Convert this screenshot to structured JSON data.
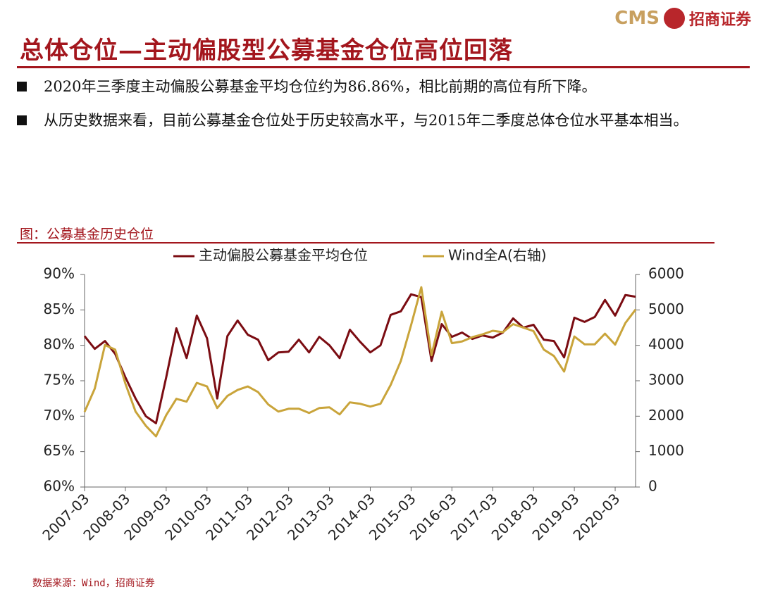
{
  "header": {
    "logo_text": "CMS",
    "logo_name": "招商证券",
    "title": "总体仓位—主动偏股型公募基金仓位高位回落"
  },
  "bullets": [
    "2020年三季度主动偏股公募基金平均仓位约为86.86%，相比前期的高位有所下降。",
    "从历史数据来看，目前公募基金仓位处于历史较高水平，与2015年二季度总体仓位水平基本相当。"
  ],
  "chart_caption": "图：公募基金历史仓位",
  "source": "数据来源：Wind，招商证券",
  "chart_data": {
    "type": "line",
    "categories": [
      "2007-03",
      null,
      null,
      null,
      "2008-03",
      null,
      null,
      null,
      "2009-03",
      null,
      null,
      null,
      "2010-03",
      null,
      null,
      null,
      "2011-03",
      null,
      null,
      null,
      "2012-03",
      null,
      null,
      null,
      "2013-03",
      null,
      null,
      null,
      "2014-03",
      null,
      null,
      null,
      "2015-03",
      null,
      null,
      null,
      "2016-03",
      null,
      null,
      null,
      "2017-03",
      null,
      null,
      null,
      "2018-03",
      null,
      null,
      null,
      "2019-03",
      null,
      null,
      null,
      "2020-03",
      null,
      null
    ],
    "series": [
      {
        "name": "主动偏股公募基金平均仓位",
        "color": "#7b0c12",
        "axis": "y",
        "values": [
          81.3,
          79.5,
          80.6,
          78.8,
          75.5,
          72.5,
          70.0,
          69.0,
          75.5,
          82.4,
          78.2,
          84.2,
          81.0,
          72.5,
          81.3,
          83.5,
          81.5,
          80.8,
          77.9,
          79.0,
          79.1,
          80.8,
          79.0,
          81.2,
          80.0,
          78.2,
          82.2,
          80.5,
          79.0,
          80.0,
          84.3,
          84.8,
          87.2,
          86.8,
          77.8,
          83.0,
          81.2,
          81.8,
          80.9,
          81.4,
          81.1,
          81.8,
          83.8,
          82.5,
          82.9,
          80.8,
          80.6,
          78.3,
          83.9,
          83.3,
          84.0,
          86.4,
          84.2,
          87.1,
          86.86
        ]
      },
      {
        "name": "Wind全A(右轴)",
        "color": "#c9a43a",
        "axis": "y2",
        "values": [
          2120,
          2780,
          4010,
          3880,
          2920,
          2130,
          1730,
          1430,
          2030,
          2490,
          2410,
          2940,
          2840,
          2230,
          2570,
          2740,
          2840,
          2680,
          2330,
          2130,
          2210,
          2210,
          2090,
          2230,
          2250,
          2050,
          2390,
          2350,
          2270,
          2350,
          2880,
          3560,
          4570,
          5640,
          3720,
          4950,
          4060,
          4110,
          4230,
          4310,
          4410,
          4370,
          4600,
          4500,
          4400,
          3880,
          3700,
          3260,
          4250,
          4030,
          4030,
          4330,
          4020,
          4630,
          5010
        ]
      }
    ],
    "ylim": [
      60,
      90
    ],
    "yticks": [
      {
        "value": 60,
        "label": "60%"
      },
      {
        "value": 65,
        "label": "65%"
      },
      {
        "value": 70,
        "label": "70%"
      },
      {
        "value": 75,
        "label": "75%"
      },
      {
        "value": 80,
        "label": "80%"
      },
      {
        "value": 85,
        "label": "85%"
      },
      {
        "value": 90,
        "label": "90%"
      }
    ],
    "y2lim": [
      0,
      6000
    ],
    "y2ticks": [
      0,
      1000,
      2000,
      3000,
      4000,
      5000,
      6000
    ],
    "legend": "top"
  }
}
